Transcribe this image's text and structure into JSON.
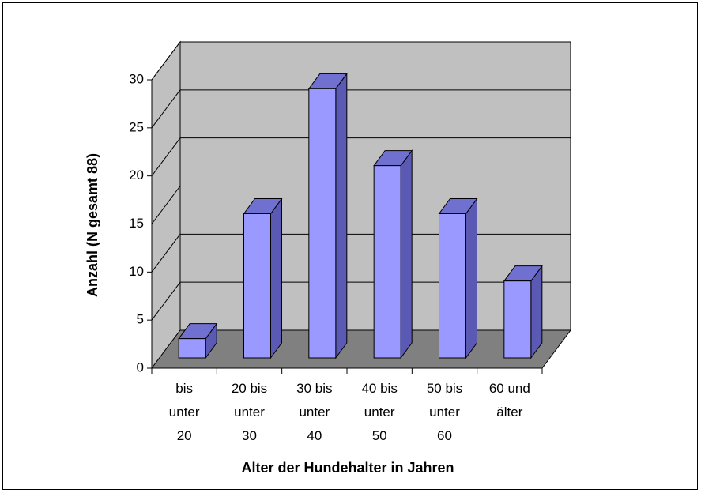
{
  "chart_data": {
    "type": "bar3d",
    "x_label": "Alter der Hundehalter in Jahren",
    "y_label": "Anzahl (N gesamt 88)",
    "categories": [
      "bis unter 20",
      "20 bis unter 30",
      "30 bis unter 40",
      "40 bis unter 50",
      "50 bis unter 60",
      "60 und älter"
    ],
    "values": [
      2,
      15,
      28,
      20,
      15,
      8
    ],
    "color": "#9999ff",
    "ylim": [
      0,
      30
    ],
    "yticks": [
      0,
      5,
      10,
      15,
      20,
      25,
      30
    ],
    "grid": true
  }
}
